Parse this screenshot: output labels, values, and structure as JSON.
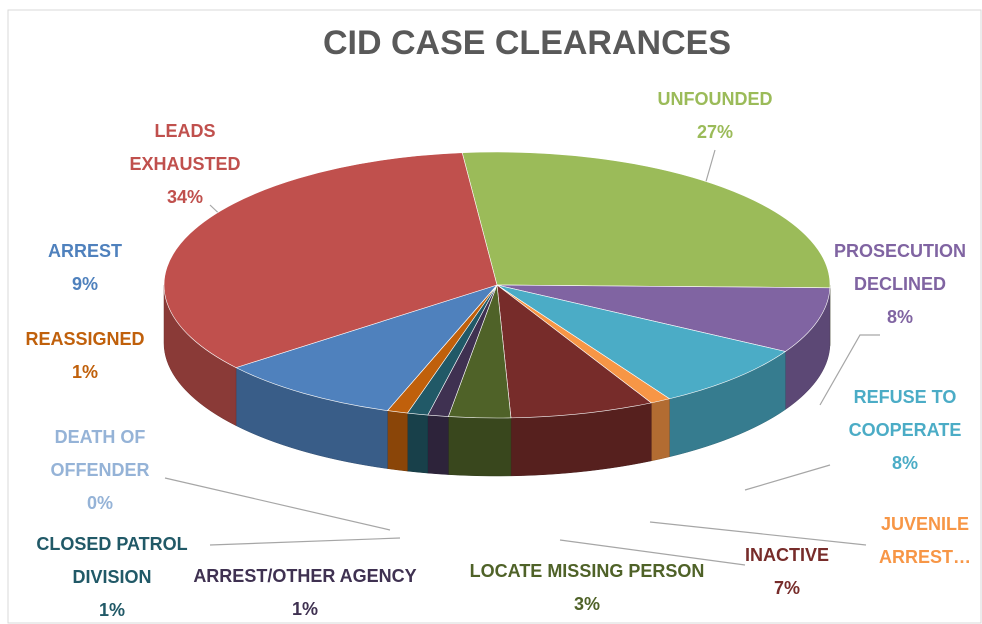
{
  "chart_data": {
    "type": "pie3d",
    "title": "CID CASE CLEARANCES",
    "categories": [
      "UNFOUNDED",
      "PROSECUTION\nDECLINED",
      "REFUSE TO\nCOOPERATE",
      "JUVENILE\nARREST…",
      "INACTIVE",
      "LOCATE MISSING PERSON",
      "ARREST/OTHER AGENCY",
      "CLOSED PATROL\nDIVISION",
      "REASSIGNED",
      "DEATH OF\nOFFENDER",
      "ARREST",
      "LEADS\nEXHAUSTED"
    ],
    "values": [
      27,
      8,
      8,
      1,
      7,
      3,
      1,
      1,
      1,
      0,
      9,
      34
    ],
    "value_labels": [
      "27%",
      "8%",
      "8%",
      null,
      "7%",
      "3%",
      "1%",
      "1%",
      "1%",
      "0%",
      "9%",
      "34%"
    ],
    "colors": [
      "#9bbb59",
      "#8064a2",
      "#4bacc6",
      "#f79646",
      "#772c2a",
      "#4f6228",
      "#3f3151",
      "#215967",
      "#c0600b",
      "#95b3d7",
      "#4f81bd",
      "#c0504d"
    ]
  }
}
